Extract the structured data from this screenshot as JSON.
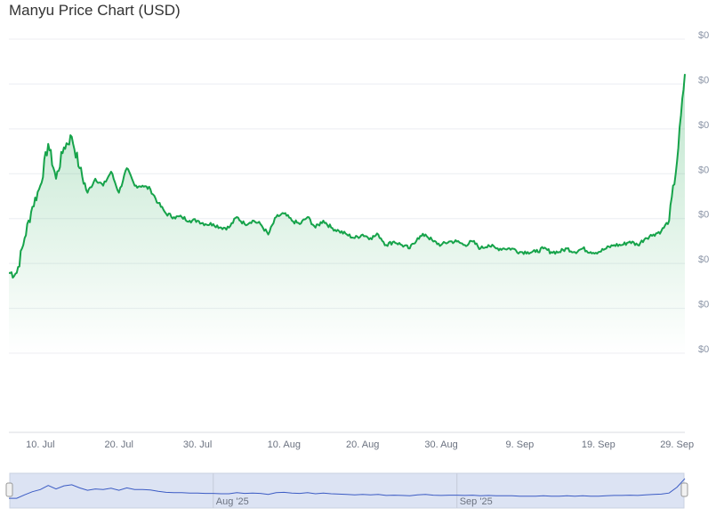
{
  "title": "Manyu Price Chart (USD)",
  "chart_data": {
    "type": "area",
    "title": "Manyu Price Chart (USD)",
    "xlabel": "",
    "ylabel": "",
    "y_tick_labels": [
      "$0",
      "$0",
      "$0",
      "$0",
      "$0",
      "$0",
      "$0",
      "$0"
    ],
    "x_tick_labels": [
      "10. Jul",
      "20. Jul",
      "30. Jul",
      "10. Aug",
      "20. Aug",
      "30. Aug",
      "9. Sep",
      "19. Sep",
      "29. Sep"
    ],
    "navigator_labels": [
      "Aug '25",
      "Sep '25"
    ],
    "grid": true,
    "legend": "none",
    "ylim": [
      0,
      9
    ],
    "series": [
      {
        "x": [
          "2025-07-06",
          "2025-07-07",
          "2025-07-08",
          "2025-07-09",
          "2025-07-10",
          "2025-07-11",
          "2025-07-12",
          "2025-07-13",
          "2025-07-14",
          "2025-07-15",
          "2025-07-16",
          "2025-07-17",
          "2025-07-18",
          "2025-07-19",
          "2025-07-20",
          "2025-07-21",
          "2025-07-22",
          "2025-07-23",
          "2025-07-24",
          "2025-07-25",
          "2025-07-26",
          "2025-07-27",
          "2025-07-28",
          "2025-07-29",
          "2025-07-30",
          "2025-07-31",
          "2025-08-01",
          "2025-08-02",
          "2025-08-03",
          "2025-08-04",
          "2025-08-05",
          "2025-08-06",
          "2025-08-07",
          "2025-08-08",
          "2025-08-09",
          "2025-08-10",
          "2025-08-11",
          "2025-08-12",
          "2025-08-13",
          "2025-08-14",
          "2025-08-15",
          "2025-08-16",
          "2025-08-17",
          "2025-08-18",
          "2025-08-19",
          "2025-08-20",
          "2025-08-21",
          "2025-08-22",
          "2025-08-23",
          "2025-08-24",
          "2025-08-25",
          "2025-08-26",
          "2025-08-27",
          "2025-08-28",
          "2025-08-29",
          "2025-08-30",
          "2025-08-31",
          "2025-09-01",
          "2025-09-02",
          "2025-09-03",
          "2025-09-04",
          "2025-09-05",
          "2025-09-06",
          "2025-09-07",
          "2025-09-08",
          "2025-09-09",
          "2025-09-10",
          "2025-09-11",
          "2025-09-12",
          "2025-09-13",
          "2025-09-14",
          "2025-09-15",
          "2025-09-16",
          "2025-09-17",
          "2025-09-18",
          "2025-09-19",
          "2025-09-20",
          "2025-09-21",
          "2025-09-22",
          "2025-09-23",
          "2025-09-24",
          "2025-09-25",
          "2025-09-26",
          "2025-09-27",
          "2025-09-28",
          "2025-09-29",
          "2025-09-30"
        ],
        "values": [
          2.3,
          2.3,
          3.3,
          4.2,
          4.8,
          6.0,
          5.0,
          5.9,
          6.2,
          5.3,
          4.6,
          5.0,
          4.8,
          5.2,
          4.6,
          5.3,
          4.8,
          4.8,
          4.7,
          4.3,
          4.0,
          3.9,
          3.9,
          3.8,
          3.8,
          3.7,
          3.7,
          3.6,
          3.6,
          3.9,
          3.7,
          3.8,
          3.7,
          3.4,
          3.9,
          4.0,
          3.8,
          3.7,
          3.9,
          3.6,
          3.8,
          3.6,
          3.5,
          3.4,
          3.3,
          3.4,
          3.3,
          3.4,
          3.1,
          3.2,
          3.1,
          3.0,
          3.3,
          3.4,
          3.2,
          3.1,
          3.2,
          3.2,
          3.1,
          3.2,
          3.0,
          3.1,
          3.0,
          3.0,
          3.0,
          2.9,
          2.9,
          2.9,
          3.0,
          2.9,
          2.9,
          3.0,
          2.9,
          3.0,
          2.9,
          2.9,
          3.0,
          3.1,
          3.1,
          3.2,
          3.1,
          3.3,
          3.4,
          3.5,
          3.8,
          5.5,
          8.0
        ]
      }
    ],
    "colors": {
      "line": "#16a34a",
      "fill": "#16a34a",
      "navigator_line": "#3b5bc4",
      "navigator_fill": "#dce3f3"
    }
  }
}
